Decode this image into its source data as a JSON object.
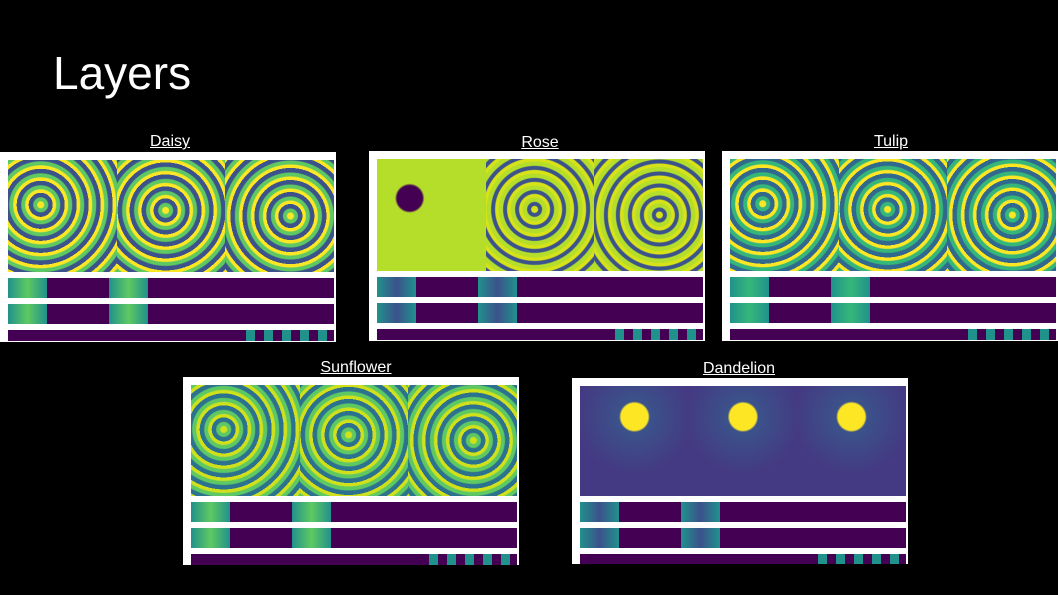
{
  "slide": {
    "title": "Layers"
  },
  "colors": {
    "viridis_dark": "#440154",
    "viridis_teal": "#21918c",
    "viridis_green": "#35b779",
    "viridis_yellow": "#fde725",
    "viridis_blue": "#3b528b"
  },
  "panels": [
    {
      "label": "Daisy"
    },
    {
      "label": "Rose"
    },
    {
      "label": "Tulip"
    },
    {
      "label": "Sunflower"
    },
    {
      "label": "Dandelion"
    }
  ]
}
